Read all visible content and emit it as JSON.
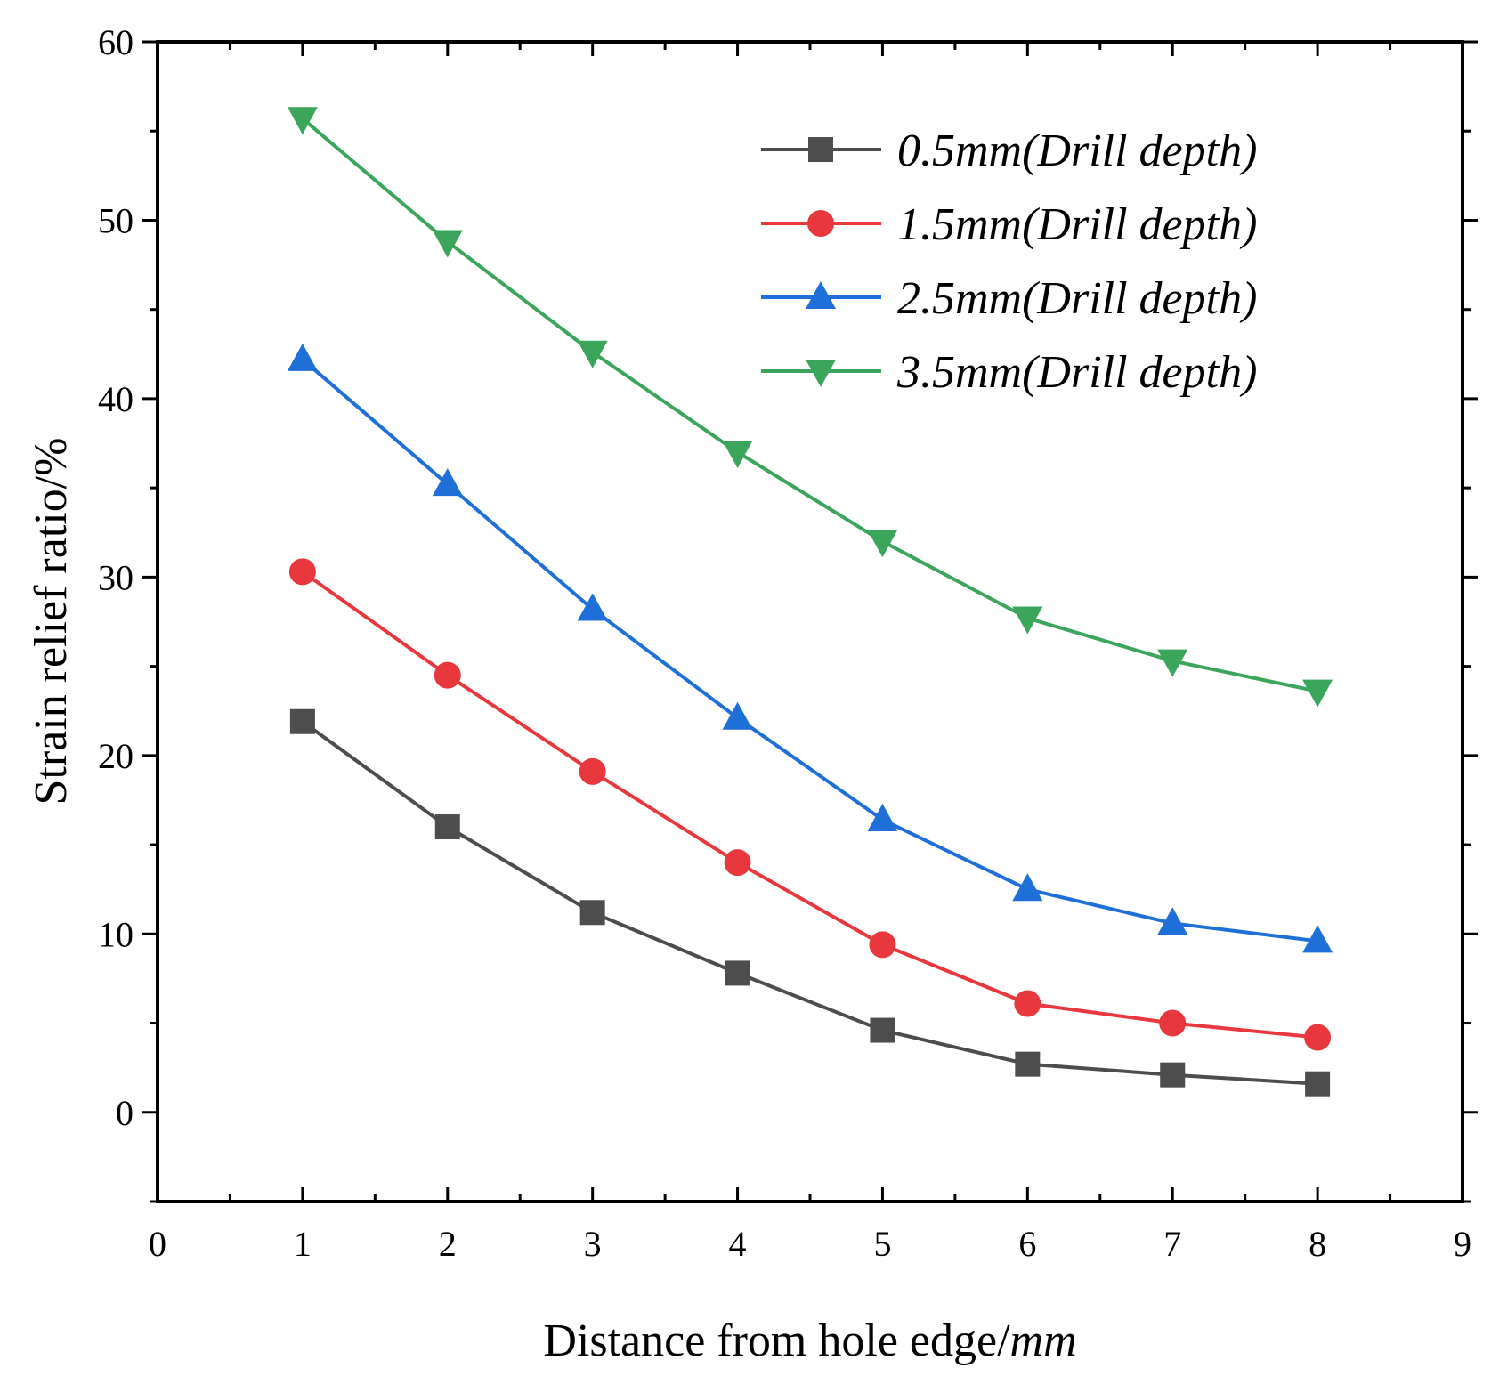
{
  "chart_data": {
    "type": "line",
    "xlabel": "Distance from hole edge/",
    "xlabel_unit": "mm",
    "ylabel": "Strain relief ratio/%",
    "xlim": [
      0,
      9
    ],
    "ylim": [
      -5,
      60
    ],
    "xticks": [
      0,
      1,
      2,
      3,
      4,
      5,
      6,
      7,
      8,
      9
    ],
    "yticks": [
      0,
      10,
      20,
      30,
      40,
      50,
      60
    ],
    "grid": false,
    "legend_position": "top-right",
    "x": [
      1,
      2,
      3,
      4,
      5,
      6,
      7,
      8
    ],
    "series": [
      {
        "name": "0.5mm(Drill depth)",
        "color": "#4d4d4d",
        "marker": "square",
        "values": [
          21.9,
          16.0,
          11.2,
          7.8,
          4.6,
          2.7,
          2.1,
          1.6
        ]
      },
      {
        "name": "1.5mm(Drill depth)",
        "color": "#e8383d",
        "marker": "circle",
        "values": [
          30.3,
          24.5,
          19.1,
          14.0,
          9.4,
          6.1,
          5.0,
          4.2
        ]
      },
      {
        "name": "2.5mm(Drill depth)",
        "color": "#1f6fd8",
        "marker": "triangle-up",
        "values": [
          42.2,
          35.2,
          28.2,
          22.1,
          16.4,
          12.5,
          10.6,
          9.6
        ]
      },
      {
        "name": "3.5mm(Drill depth)",
        "color": "#3aa55b",
        "marker": "triangle-down",
        "values": [
          55.7,
          48.8,
          42.6,
          37.0,
          32.0,
          27.7,
          25.3,
          23.6
        ]
      }
    ]
  }
}
